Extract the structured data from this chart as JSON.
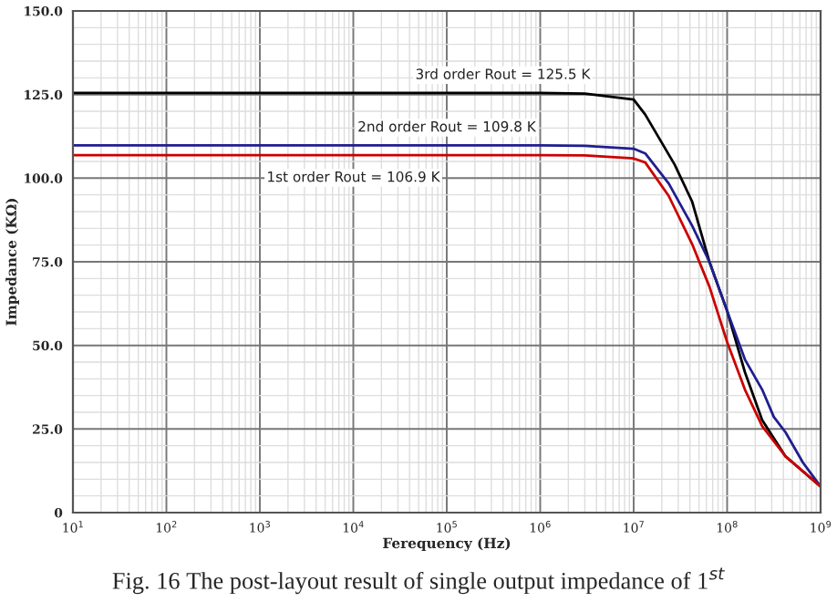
{
  "chart_data": {
    "type": "line",
    "xlabel": "Ferequency (Hz)",
    "ylabel": "Impedance (KΩ)",
    "log": "x",
    "xlim": [
      10,
      1000000000
    ],
    "ylim": [
      0,
      150
    ],
    "xticks": [
      {
        "value": 10,
        "label": "10$^{1}$"
      },
      {
        "value": 100,
        "label": "10$^{2}$"
      },
      {
        "value": 1000,
        "label": "10$^{3}$"
      },
      {
        "value": 10000,
        "label": "10$^{4}$"
      },
      {
        "value": 100000,
        "label": "10$^{5}$"
      },
      {
        "value": 1000000,
        "label": "10$^{6}$"
      },
      {
        "value": 10000000,
        "label": "10$^{7}$"
      },
      {
        "value": 100000000,
        "label": "10$^{8}$"
      },
      {
        "value": 1000000000,
        "label": "10$^{9}$"
      }
    ],
    "yticks": [
      0,
      {
        "value": 25,
        "label": "25.0"
      },
      {
        "value": 50,
        "label": "50.0"
      },
      {
        "value": 75,
        "label": "75.0"
      },
      {
        "value": 100,
        "label": "100.0"
      },
      {
        "value": 125,
        "label": "125.0"
      },
      {
        "value": 150,
        "label": "150.0"
      }
    ],
    "grid": true,
    "marker": "none",
    "line_style": "solid",
    "series": [
      {
        "name": "3rd order Rout = 125.5 K",
        "color": "#000000",
        "x": [
          10,
          1000000,
          3000000,
          10000000,
          13300000,
          27500000,
          42200000,
          64600000,
          100000000,
          155000000,
          237000000,
          422000000,
          1000000000
        ],
        "values": [
          125.5,
          125.5,
          125.3,
          123.5,
          119,
          104,
          93,
          75,
          60.3,
          42,
          27.7,
          16.8,
          7.8
        ]
      },
      {
        "name": "2nd order Rout = 109.8 K",
        "color": "#1f1f8f",
        "x": [
          10,
          1000000,
          3000000,
          10000000,
          13300000,
          23700000,
          42200000,
          64600000,
          100000000,
          155000000,
          237000000,
          316000000,
          422000000,
          646000000,
          1000000000
        ],
        "values": [
          109.8,
          109.8,
          109.7,
          108.8,
          107.4,
          98.4,
          85.8,
          75,
          60.3,
          45.8,
          36.8,
          28.6,
          24,
          15,
          7.8
        ]
      },
      {
        "name": "1st order Rout = 106.9 K",
        "color": "#cc0000",
        "x": [
          10,
          1000000,
          3000000,
          10000000,
          13300000,
          23700000,
          42200000,
          64600000,
          100000000,
          155000000,
          237000000,
          422000000,
          1000000000
        ],
        "values": [
          106.9,
          106.9,
          106.8,
          105.9,
          104.7,
          94.7,
          80.3,
          67.6,
          51,
          36.8,
          25.9,
          16.8,
          7.8
        ]
      }
    ],
    "annotations": [
      "Fig. 16 The post-layout result of single output impedance of 1$^{st}$"
    ]
  }
}
